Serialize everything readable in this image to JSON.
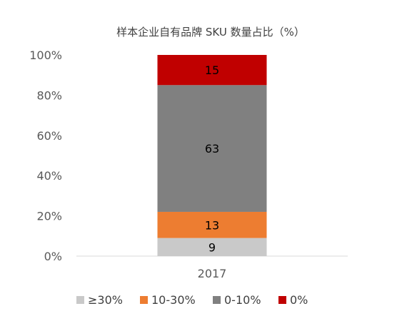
{
  "chart_data": {
    "type": "bar",
    "stacked": true,
    "percent": true,
    "title": "样本企业自有品牌 SKU 数量占比（%）",
    "categories": [
      "2017"
    ],
    "series": [
      {
        "name": "≥30%",
        "values": [
          9
        ],
        "color": "#C9C9C9"
      },
      {
        "name": "10-30%",
        "values": [
          13
        ],
        "color": "#ED7D31"
      },
      {
        "name": "0-10%",
        "values": [
          63
        ],
        "color": "#808080"
      },
      {
        "name": "0%",
        "values": [
          15
        ],
        "color": "#C00000"
      }
    ],
    "ylim": [
      0,
      100
    ],
    "yticks": [
      "0%",
      "20%",
      "40%",
      "60%",
      "80%",
      "100%"
    ],
    "grid": false,
    "legend": "bottom"
  }
}
